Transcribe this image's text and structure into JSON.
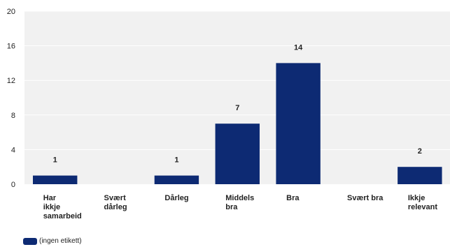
{
  "chart_data": {
    "type": "bar",
    "categories": [
      "Har ikkje samarbeid",
      "Svært dårleg",
      "Dårleg",
      "Middels bra",
      "Bra",
      "Svært bra",
      "Ikkje relevant"
    ],
    "category_lines": [
      [
        "Har",
        "ikkje",
        "samarbeid"
      ],
      [
        "Svært",
        "dårleg"
      ],
      [
        "Dårleg"
      ],
      [
        "Middels",
        "bra"
      ],
      [
        "Bra"
      ],
      [
        "Svært bra"
      ],
      [
        "Ikkje",
        "relevant"
      ]
    ],
    "series": [
      {
        "name": "(ingen etikett)",
        "values": [
          1,
          0,
          1,
          7,
          14,
          0,
          2
        ]
      }
    ],
    "data_labels": [
      "1",
      "",
      "1",
      "7",
      "14",
      "",
      "2"
    ],
    "yticks": [
      0,
      4,
      8,
      12,
      16,
      20
    ],
    "ylim": [
      0,
      20
    ],
    "grid": true,
    "legend_position": "bottom-left",
    "bar_color": "#0d2a73",
    "grid_color": "#ffffff",
    "background_color": "#f1f1f1"
  }
}
